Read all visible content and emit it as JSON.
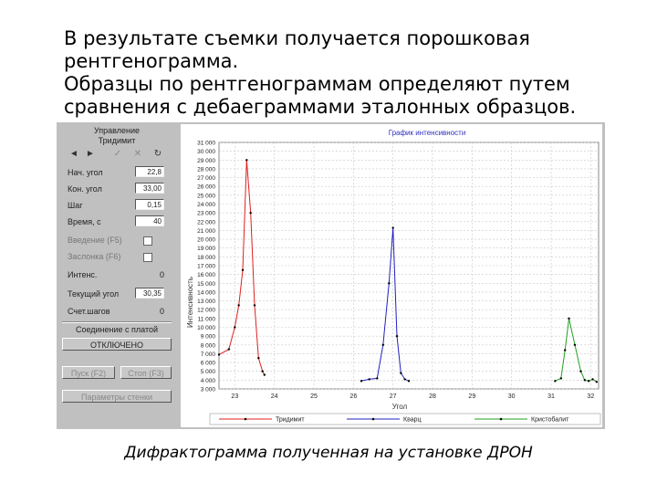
{
  "slide": {
    "line1": "В результате съемки получается порошковая",
    "line2": "рентгенограмма.",
    "line3": "Образцы по рентгенограммам определяют путем",
    "line4": "сравнения с дебаеграммами эталонных образцов."
  },
  "caption": "Дифрактограмма полученная на установке ДРОН",
  "panel": {
    "title1": "Управление",
    "title2": "Тридимит",
    "toolbar_icons": [
      "arrow-left-icon",
      "arrow-right-icon",
      "check-icon",
      "cross-icon",
      "refresh-icon"
    ],
    "fields": [
      {
        "label": "Нач. угол",
        "value": "22,8"
      },
      {
        "label": "Кон. угол",
        "value": "33,00"
      },
      {
        "label": "Шаг",
        "value": "0,15"
      },
      {
        "label": "Время, с",
        "value": "40"
      }
    ],
    "checks": [
      {
        "label": "Введение (F5)"
      },
      {
        "label": "Заслонка (F6)"
      }
    ],
    "intensity_label": "Интенс.",
    "intensity_value": "0",
    "current_angle_label": "Текущий угол",
    "current_angle_value": "30,35",
    "step_count_label": "Счет.шагов",
    "step_count_value": "0",
    "connection_label": "Соединение с платой",
    "connection_button": "ОТКЛЮЧЕНО",
    "start_button": "Пуск (F2)",
    "stop_button": "Стоп (F3)",
    "settings_button": "Параметры стенки"
  },
  "chart_data": {
    "type": "line",
    "title": "График интенсивности",
    "xlabel": "Угол",
    "ylabel": "Интенсивность",
    "xlim": [
      22.6,
      32.2
    ],
    "ylim": [
      3000,
      31000
    ],
    "x_ticks": [
      23,
      24,
      25,
      26,
      27,
      28,
      29,
      30,
      31,
      32
    ],
    "x_tick_labels": [
      "23",
      "24",
      "25",
      "26",
      "27",
      "28",
      "29",
      "30",
      "31",
      "32"
    ],
    "y_ticks": [
      3000,
      4000,
      5000,
      6000,
      7000,
      8000,
      9000,
      10000,
      11000,
      12000,
      13000,
      14000,
      15000,
      16000,
      17000,
      18000,
      19000,
      20000,
      21000,
      22000,
      23000,
      24000,
      25000,
      26000,
      27000,
      28000,
      29000,
      30000,
      31000
    ],
    "y_tick_labels": [
      "3 000",
      "4 000",
      "5 000",
      "6 000",
      "7 000",
      "8 000",
      "9 000",
      "10 000",
      "11 000",
      "12 000",
      "13 000",
      "14 000",
      "15 000",
      "16 000",
      "17 000",
      "18 000",
      "19 000",
      "20 000",
      "21 000",
      "22 000",
      "23 000",
      "24 000",
      "25 000",
      "26 000",
      "27 000",
      "28 000",
      "29 000",
      "30 000",
      "31 000"
    ],
    "grid": true,
    "legend_position": "bottom",
    "series": [
      {
        "name": "Тридимит",
        "color": "#e02020",
        "x": [
          22.6,
          22.85,
          23.0,
          23.1,
          23.2,
          23.3,
          23.4,
          23.5,
          23.6,
          23.7,
          23.75
        ],
        "y": [
          6900,
          7500,
          10000,
          12500,
          16500,
          29000,
          23000,
          12500,
          6500,
          5000,
          4600
        ]
      },
      {
        "name": "Кварц",
        "color": "#2020c0",
        "x": [
          26.2,
          26.4,
          26.6,
          26.75,
          26.9,
          27.0,
          27.1,
          27.2,
          27.3,
          27.4
        ],
        "y": [
          3900,
          4100,
          4200,
          8000,
          15000,
          21300,
          9000,
          4800,
          4100,
          3900
        ]
      },
      {
        "name": "Кристобалит",
        "color": "#20a020",
        "x": [
          31.1,
          31.25,
          31.35,
          31.45,
          31.6,
          31.75,
          31.85,
          31.95,
          32.05,
          32.15
        ],
        "y": [
          3900,
          4200,
          7400,
          11000,
          8000,
          5000,
          4000,
          3900,
          4100,
          3800
        ]
      }
    ]
  }
}
